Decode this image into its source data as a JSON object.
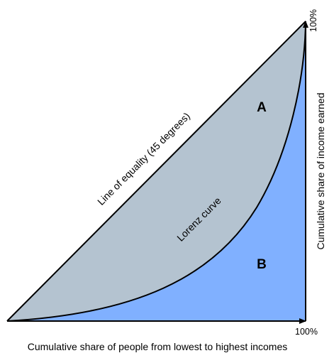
{
  "diagram": {
    "line_of_equality_label": "Line of equality (45 degrees)",
    "lorenz_curve_label": "Lorenz curve",
    "region_a_label": "A",
    "region_b_label": "B",
    "x_axis_label": "Cumulative share of people from lowest to highest incomes",
    "y_axis_label": "Cumulative share of income earned",
    "x_max_label": "100%",
    "y_max_label": "100%",
    "colors": {
      "region_a_fill": "#b4c3d0",
      "region_b_fill": "#80b0ff",
      "lines": "#000000"
    }
  }
}
